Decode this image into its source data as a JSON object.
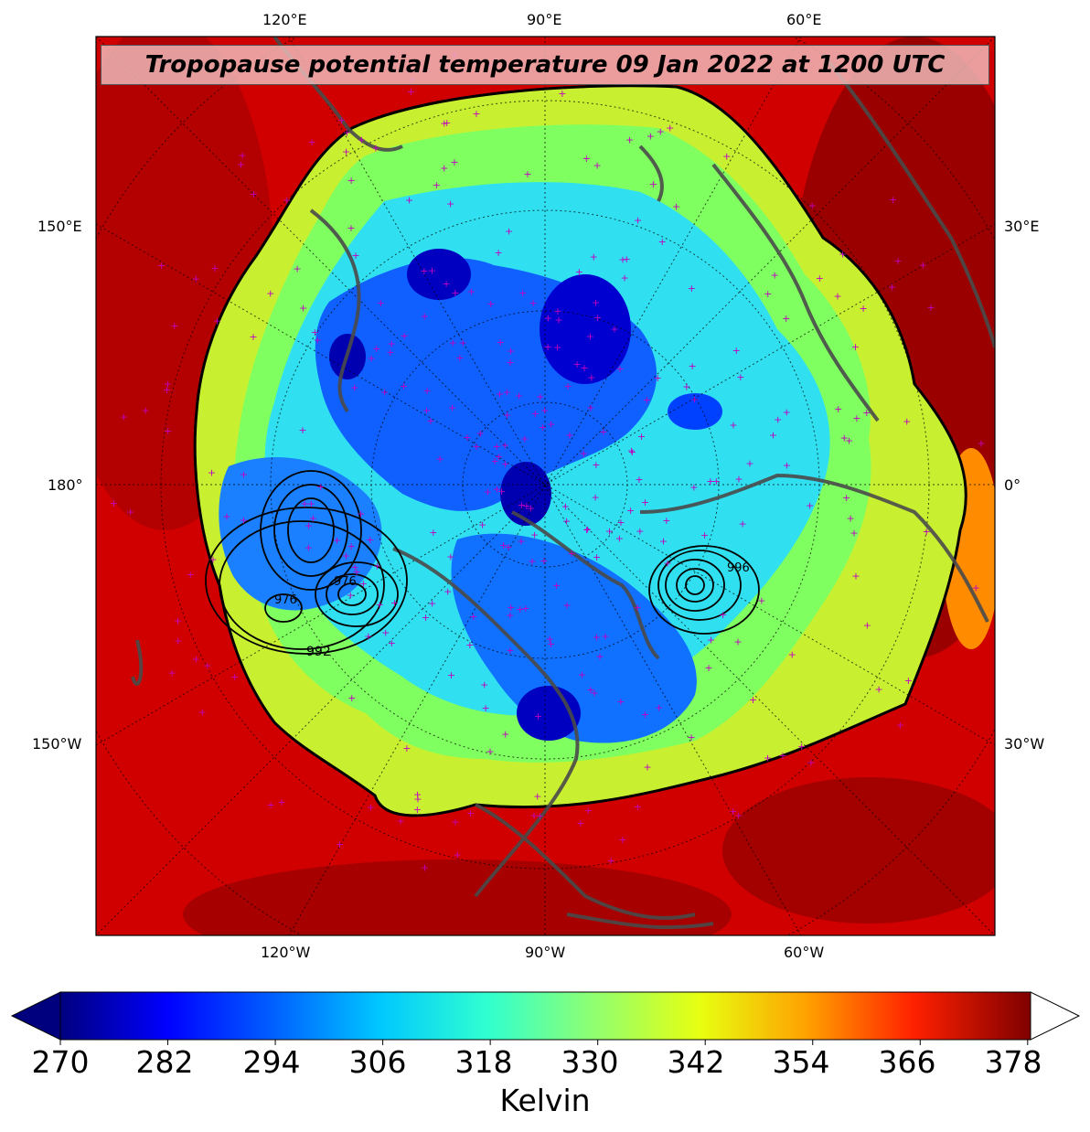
{
  "map": {
    "title": "Tropopause potential temperature 09 Jan 2022 at 1200 UTC",
    "projection": "north polar stereographic",
    "top_lon_labels": [
      "120°E",
      "90°E",
      "60°E"
    ],
    "bottom_lon_labels": [
      "120°W",
      "90°W",
      "60°W"
    ],
    "left_lon_labels": [
      "150°E",
      "180°",
      "150°W"
    ],
    "right_lon_labels": [
      "30°E",
      "0°",
      "30°W"
    ],
    "contour_labels": [
      "992",
      "976",
      "976",
      "996"
    ],
    "colors": {
      "outer_warm": "#c80000",
      "dark_red": "#8b0000",
      "yellow": "#f0f020",
      "cyan": "#20d0f0",
      "blue": "#0040ff",
      "coast": "#505050",
      "station_marker": "#c000c0"
    }
  },
  "colorbar": {
    "ticks": [
      "270",
      "282",
      "294",
      "306",
      "318",
      "330",
      "342",
      "354",
      "366",
      "378"
    ],
    "label": "Kelvin",
    "min": 270,
    "max": 378,
    "extend": "both"
  }
}
